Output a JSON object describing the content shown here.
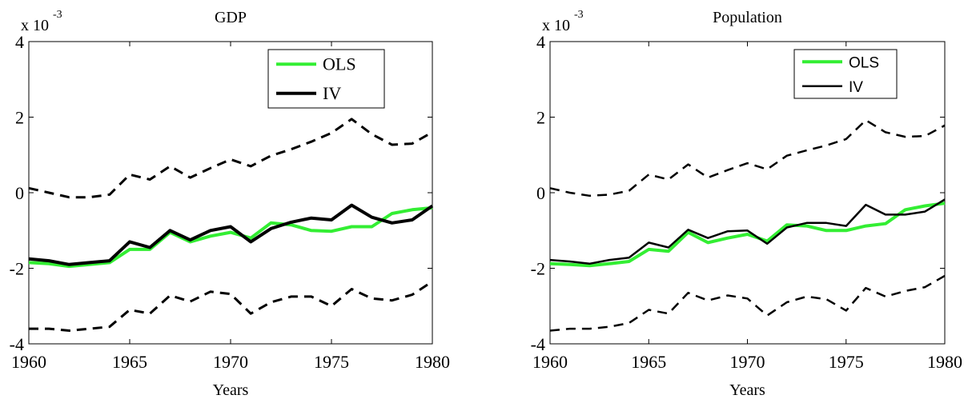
{
  "chart_data": [
    {
      "type": "line",
      "title": "GDP",
      "x_label": "Years",
      "y_multiplier": {
        "base": "x 10",
        "exponent": "-3"
      },
      "x": [
        1960,
        1961,
        1962,
        1963,
        1964,
        1965,
        1966,
        1967,
        1968,
        1969,
        1970,
        1971,
        1972,
        1973,
        1974,
        1975,
        1976,
        1977,
        1978,
        1979,
        1980
      ],
      "xlim": [
        1960,
        1980
      ],
      "xticks": [
        1960,
        1965,
        1970,
        1975,
        1980
      ],
      "ylim": [
        -4,
        4
      ],
      "yticks": [
        -4,
        -2,
        0,
        2,
        4
      ],
      "legend": "northeast",
      "series": [
        {
          "name": "OLS",
          "color": "#33ee33",
          "values": [
            -1.85,
            -1.88,
            -1.95,
            -1.9,
            -1.85,
            -1.5,
            -1.5,
            -1.05,
            -1.3,
            -1.15,
            -1.05,
            -1.2,
            -0.8,
            -0.85,
            -1.0,
            -1.02,
            -0.9,
            -0.9,
            -0.55,
            -0.45,
            -0.4
          ]
        },
        {
          "name": "IV",
          "color": "#000000",
          "values": [
            -1.75,
            -1.8,
            -1.9,
            -1.85,
            -1.8,
            -1.3,
            -1.45,
            -1.0,
            -1.25,
            -1.0,
            -0.9,
            -1.3,
            -0.95,
            -0.78,
            -0.67,
            -0.72,
            -0.33,
            -0.65,
            -0.8,
            -0.72,
            -0.35
          ]
        },
        {
          "color": "#000000",
          "dash": true,
          "values": [
            0.12,
            0.0,
            -0.12,
            -0.12,
            -0.05,
            0.48,
            0.35,
            0.7,
            0.4,
            0.65,
            0.88,
            0.7,
            0.98,
            1.15,
            1.35,
            1.58,
            1.95,
            1.55,
            1.27,
            1.3,
            1.6
          ]
        },
        {
          "color": "#000000",
          "dash": true,
          "values": [
            -3.6,
            -3.6,
            -3.65,
            -3.6,
            -3.55,
            -3.1,
            -3.2,
            -2.72,
            -2.88,
            -2.62,
            -2.68,
            -3.2,
            -2.9,
            -2.75,
            -2.75,
            -3.0,
            -2.55,
            -2.8,
            -2.85,
            -2.7,
            -2.35
          ]
        }
      ]
    },
    {
      "type": "line",
      "title": "Population",
      "x_label": "Years",
      "y_multiplier": {
        "base": "x 10",
        "exponent": "-3"
      },
      "x": [
        1960,
        1961,
        1962,
        1963,
        1964,
        1965,
        1966,
        1967,
        1968,
        1969,
        1970,
        1971,
        1972,
        1973,
        1974,
        1975,
        1976,
        1977,
        1978,
        1979,
        1980
      ],
      "xlim": [
        1960,
        1980
      ],
      "xticks": [
        1960,
        1965,
        1970,
        1975,
        1980
      ],
      "ylim": [
        -4,
        4
      ],
      "yticks": [
        -4,
        -2,
        0,
        2,
        4
      ],
      "legend": "northeast",
      "series": [
        {
          "name": "OLS",
          "color": "#33ee33",
          "values": [
            -1.88,
            -1.9,
            -1.93,
            -1.88,
            -1.82,
            -1.5,
            -1.55,
            -1.05,
            -1.32,
            -1.2,
            -1.1,
            -1.28,
            -0.85,
            -0.88,
            -1.0,
            -1.0,
            -0.88,
            -0.82,
            -0.45,
            -0.35,
            -0.28
          ]
        },
        {
          "name": "IV",
          "color": "#000000",
          "values": [
            -1.78,
            -1.82,
            -1.88,
            -1.78,
            -1.72,
            -1.32,
            -1.45,
            -0.98,
            -1.2,
            -1.02,
            -1.0,
            -1.35,
            -0.92,
            -0.8,
            -0.8,
            -0.88,
            -0.32,
            -0.58,
            -0.58,
            -0.5,
            -0.18
          ]
        },
        {
          "color": "#000000",
          "dash": true,
          "values": [
            0.12,
            0.0,
            -0.08,
            -0.05,
            0.05,
            0.48,
            0.35,
            0.75,
            0.4,
            0.6,
            0.78,
            0.62,
            0.98,
            1.12,
            1.25,
            1.42,
            1.92,
            1.6,
            1.48,
            1.5,
            1.78
          ]
        },
        {
          "color": "#000000",
          "dash": true,
          "values": [
            -3.65,
            -3.6,
            -3.6,
            -3.55,
            -3.45,
            -3.1,
            -3.2,
            -2.65,
            -2.85,
            -2.72,
            -2.8,
            -3.25,
            -2.9,
            -2.75,
            -2.82,
            -3.12,
            -2.52,
            -2.75,
            -2.6,
            -2.5,
            -2.2
          ]
        }
      ]
    }
  ]
}
